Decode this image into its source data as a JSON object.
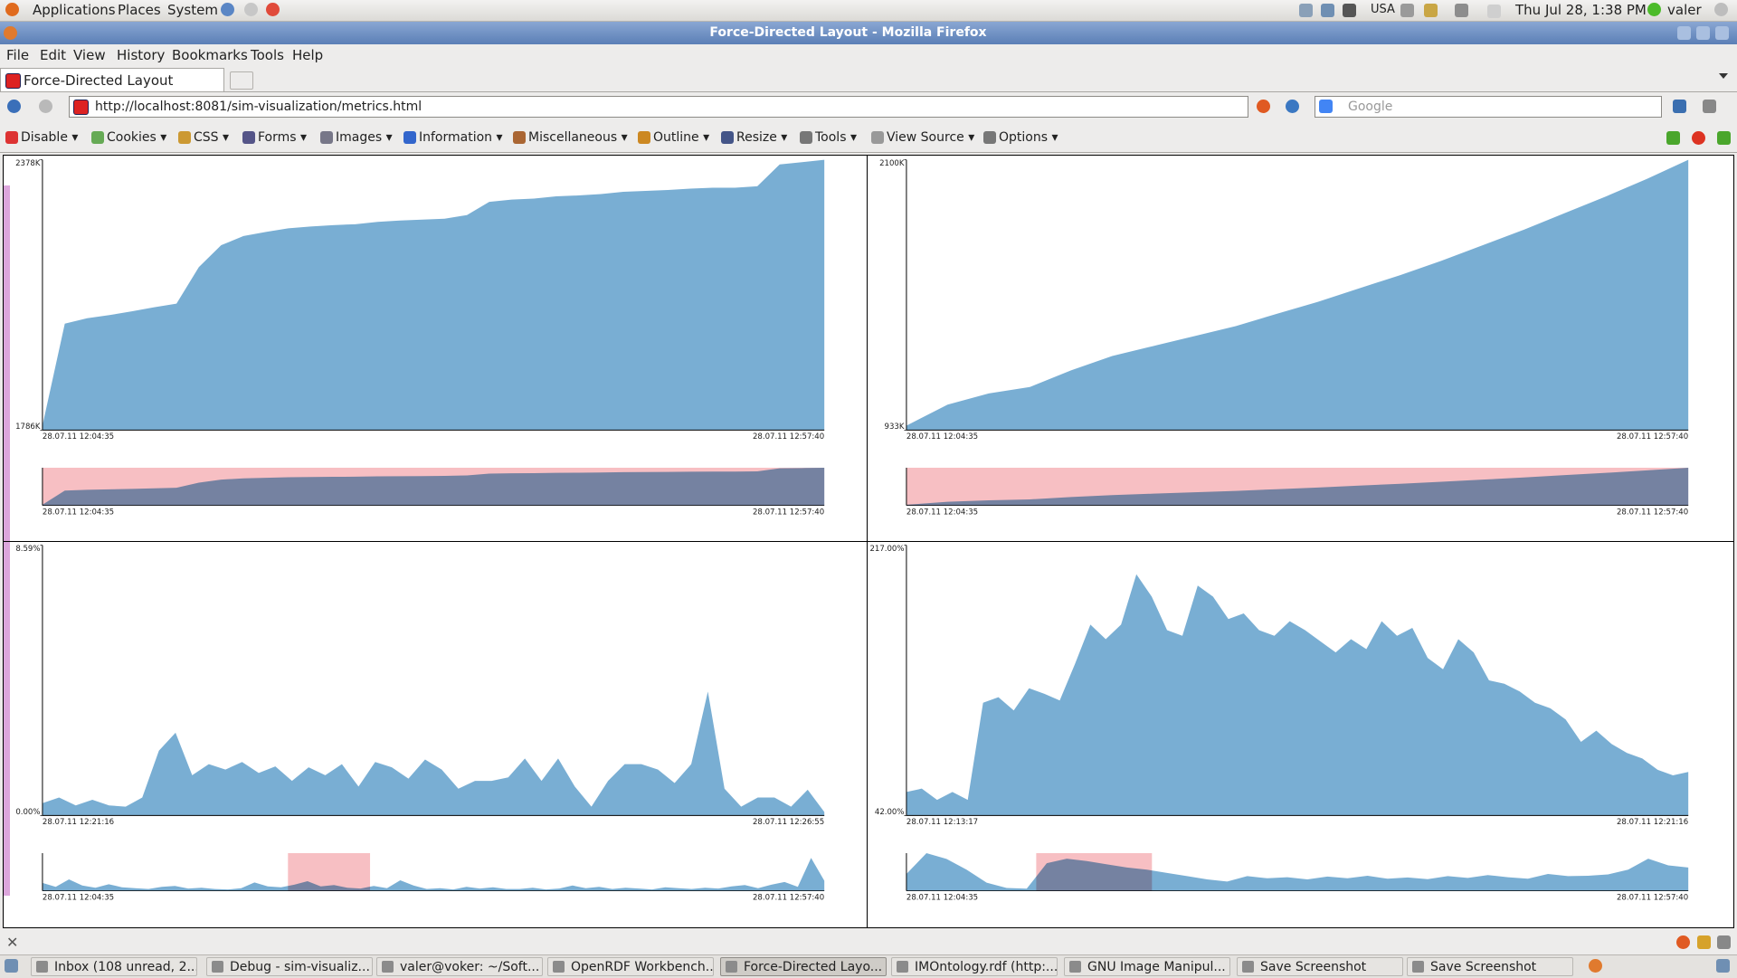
{
  "top_panel": {
    "menus": [
      "Applications",
      "Places",
      "System"
    ],
    "keyboard": "USA",
    "clock": "Thu Jul 28,  1:38 PM",
    "user": "valer"
  },
  "window_title": "Force-Directed Layout - Mozilla Firefox",
  "menu_bar": [
    "File",
    "Edit",
    "View",
    "History",
    "Bookmarks",
    "Tools",
    "Help"
  ],
  "tab": "Force-Directed Layout",
  "url": "http://localhost:8081/sim-visualization/metrics.html",
  "search_placeholder": "Google",
  "dev_toolbar": [
    "Disable",
    "Cookies",
    "CSS",
    "Forms",
    "Images",
    "Information",
    "Miscellaneous",
    "Outline",
    "Resize",
    "Tools",
    "View Source",
    "Options"
  ],
  "charts": [
    {
      "type": "area",
      "color": "#79aed3",
      "ylim": [
        1786,
        2378
      ],
      "yticks": [
        {
          "value": 1786,
          "label": "1786K"
        },
        {
          "value": 2378,
          "label": "2378K"
        }
      ],
      "x_labels": [
        "28.07.11 12:04:35",
        "28.07.11 12:57:40"
      ],
      "values": [
        1796,
        2019,
        2031,
        2038,
        2046,
        2055,
        2063,
        2143,
        2191,
        2211,
        2220,
        2228,
        2232,
        2235,
        2237,
        2242,
        2245,
        2247,
        2249,
        2257,
        2286,
        2291,
        2293,
        2298,
        2300,
        2303,
        2308,
        2310,
        2312,
        2315,
        2317,
        2317,
        2320,
        2368,
        2373,
        2378
      ],
      "overview_x_labels": [
        "28.07.11 12:04:35",
        "28.07.11 12:57:40"
      ]
    },
    {
      "type": "area",
      "color": "#79aed3",
      "ylim": [
        933,
        2100
      ],
      "yticks": [
        {
          "value": 933,
          "label": "933K"
        },
        {
          "value": 2100,
          "label": "2100K"
        }
      ],
      "x_labels": [
        "28.07.11 12:04:35",
        "28.07.11 12:57:40"
      ],
      "values": [
        952,
        1043,
        1091,
        1119,
        1191,
        1253,
        1296,
        1339,
        1382,
        1435,
        1487,
        1545,
        1602,
        1664,
        1731,
        1798,
        1870,
        1942,
        2018,
        2100
      ],
      "overview_x_labels": [
        "28.07.11 12:04:35",
        "28.07.11 12:57:40"
      ]
    },
    {
      "type": "area",
      "color": "#79aed3",
      "ylim": [
        0,
        8.59
      ],
      "yticks": [
        {
          "value": 0,
          "label": "0.00%"
        },
        {
          "value": 8.59,
          "label": "8.59%"
        }
      ],
      "x_labels": [
        "28.07.11 12:21:16",
        "28.07.11 12:26:55"
      ],
      "values": [
        0.39,
        0.57,
        0.32,
        0.5,
        0.32,
        0.28,
        0.57,
        2.06,
        2.63,
        1.28,
        1.63,
        1.46,
        1.7,
        1.35,
        1.56,
        1.1,
        1.53,
        1.28,
        1.63,
        0.92,
        1.7,
        1.53,
        1.17,
        1.78,
        1.46,
        0.85,
        1.1,
        1.1,
        1.21,
        1.81,
        1.1,
        1.81,
        0.92,
        0.28,
        1.1,
        1.63,
        1.63,
        1.46,
        1.03,
        1.63,
        3.94,
        0.85,
        0.28,
        0.57,
        0.57,
        0.28,
        0.82,
        0.11
      ],
      "overview_x_labels": [
        "28.07.11 12:04:35",
        "28.07.11 12:57:40"
      ],
      "overview_values": [
        1.8,
        0.9,
        2.6,
        1.2,
        0.7,
        1.5,
        0.8,
        0.6,
        0.4,
        0.9,
        1.1,
        0.5,
        0.7,
        0.4,
        0.3,
        0.6,
        1.9,
        1.0,
        0.8,
        1.4,
        2.2,
        1.0,
        1.3,
        0.7,
        0.5,
        1.1,
        0.6,
        2.4,
        1.2,
        0.4,
        0.6,
        0.3,
        0.9,
        0.5,
        0.8,
        0.4,
        0.4,
        0.7,
        0.3,
        0.5,
        1.2,
        0.6,
        0.9,
        0.4,
        0.7,
        0.5,
        0.3,
        0.8,
        0.6,
        0.4,
        0.7,
        0.5,
        1.0,
        1.3,
        0.6,
        1.4,
        2.0,
        0.9,
        7.5,
        2.3
      ]
    },
    {
      "type": "area",
      "color": "#79aed3",
      "ylim": [
        42,
        217
      ],
      "yticks": [
        {
          "value": 42,
          "label": "42.00%"
        },
        {
          "value": 217,
          "label": "217.00%"
        }
      ],
      "x_labels": [
        "28.07.11 12:13:17",
        "28.07.11 12:21:16"
      ],
      "values": [
        57.2,
        59.4,
        52.1,
        57.2,
        52.1,
        115.0,
        118.6,
        110.0,
        124.4,
        120.8,
        116.5,
        140.3,
        165.6,
        156.2,
        165.6,
        198.2,
        183.7,
        162.0,
        158.4,
        190.9,
        183.7,
        169.2,
        172.9,
        162.0,
        158.4,
        167.8,
        162.0,
        154.8,
        147.6,
        156.2,
        149.7,
        167.8,
        158.4,
        163.5,
        144.0,
        136.7,
        156.2,
        147.6,
        129.5,
        127.3,
        122.3,
        115.0,
        111.4,
        104.2,
        89.7,
        96.9,
        88.3,
        82.5,
        78.9,
        71.6,
        68.0,
        70.2
      ],
      "overview_x_labels": [
        "28.07.11 12:04:35",
        "28.07.11 12:57:40"
      ],
      "overview_values": [
        120,
        217,
        190,
        140,
        80,
        55,
        52,
        170,
        191,
        180,
        165,
        150,
        140,
        125,
        110,
        95,
        85,
        110,
        100,
        105,
        95,
        108,
        100,
        112,
        98,
        104,
        96,
        110,
        102,
        115,
        105,
        98,
        120,
        110,
        112,
        118,
        140,
        191,
        160,
        150
      ]
    }
  ],
  "taskbar": [
    "Inbox (108 unread, 2...",
    "Debug - sim-visualiz...",
    "valer@voker: ~/Soft...",
    "OpenRDF Workbench...",
    "Force-Directed Layo...",
    "IMOntology.rdf (http:...",
    "GNU Image Manipul...",
    "Save Screenshot",
    "Save Screenshot"
  ]
}
